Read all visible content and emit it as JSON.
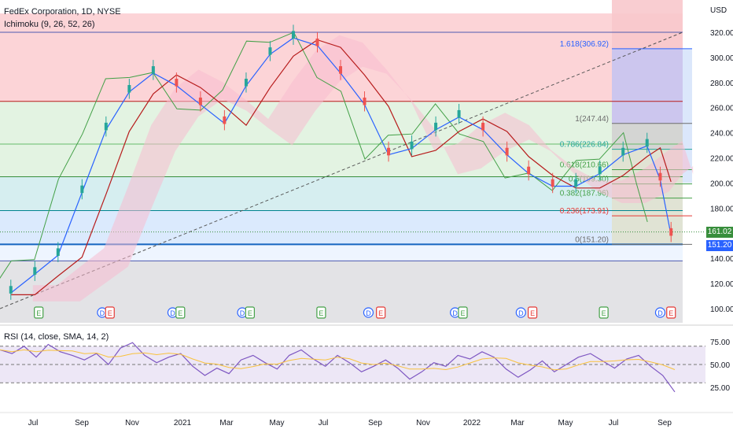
{
  "header": {
    "symbol_title": "FedEx Corporation, 1D, NYSE",
    "indicator_title": "Ichimoku (9, 26, 52, 26)",
    "currency": "USD"
  },
  "rsi_panel": {
    "title": "RSI (14, close, SMA, 14, 2)"
  },
  "price_tags": [
    {
      "value": "161.02",
      "color": "#388e3c"
    },
    {
      "value": "151.20",
      "color": "#2962ff"
    }
  ],
  "colors": {
    "band_red": "#fcd4d7",
    "band_green": "#e3f3e2",
    "band_teal": "#d6eef0",
    "band_blue": "#dbeafd",
    "band_gray": "#e3e3e6",
    "kijun_line": "#b71c1c",
    "tenkan_line": "#2962ff",
    "lagging_line": "#43a047",
    "cloud_bull": "#c8e6c9",
    "cloud_bear": "#f8bbd0",
    "rsi_line": "#7e57c2",
    "rsi_ma": "#f9c23c",
    "rsi_band": "#ede7f6"
  },
  "chart_data": [
    {
      "type": "line",
      "title": "FedEx Corporation, 1D, NYSE",
      "indicator": "Ichimoku (9, 26, 52, 26)",
      "y_axis_unit": "USD",
      "ylim": [
        95,
        335
      ],
      "y_ticks": [
        100,
        120,
        140,
        160,
        180,
        200,
        220,
        240,
        260,
        280,
        300,
        320
      ],
      "x_ticks": [
        "Jul",
        "Sep",
        "Nov",
        "2021",
        "Mar",
        "May",
        "Jul",
        "Sep",
        "Nov",
        "2022",
        "Mar",
        "May",
        "Jul",
        "Sep"
      ],
      "series": [
        {
          "name": "",
          "x": [
            "2020-05-15",
            "2020-06-15",
            "2020-07-15",
            "2020-08-15",
            "2020-09-15",
            "2020-10-15",
            "2020-11-15",
            "2020-12-15",
            "2021-01-15",
            "2021-02-15",
            "2021-03-15",
            "2021-04-15",
            "2021-05-15",
            "2021-06-15",
            "2021-07-15",
            "2021-08-15",
            "2021-09-15",
            "2021-10-15",
            "2021-11-15",
            "2021-12-15",
            "2022-01-15",
            "2022-02-15",
            "2022-03-15",
            "2022-04-15",
            "2022-05-15",
            "2022-06-15",
            "2022-07-15",
            "2022-08-15",
            "2022-09-01",
            "2022-09-15"
          ],
          "values": [
            115,
            130,
            145,
            195,
            245,
            275,
            290,
            280,
            265,
            250,
            280,
            305,
            318,
            312,
            290,
            265,
            225,
            230,
            245,
            255,
            245,
            225,
            210,
            200,
            200,
            210,
            225,
            232,
            205,
            161
          ]
        }
      ],
      "price_lines": [
        151.2,
        161.02
      ],
      "fibonacci_levels": [
        {
          "label": "1.618(306.92)",
          "value": 306.92
        },
        {
          "label": "1(247.44)",
          "value": 247.44
        },
        {
          "label": "0.786(226.84)",
          "value": 226.84
        },
        {
          "label": "0.618(210.66)",
          "value": 210.66
        },
        {
          "label": "0.5(199.30)",
          "value": 199.3
        },
        {
          "label": "0.382(187.96)",
          "value": 187.96
        },
        {
          "label": "0.236(173.91)",
          "value": 173.91
        },
        {
          "label": "0(151.20)",
          "value": 151.2
        }
      ],
      "horizontal_levels": [
        320,
        265,
        231,
        205,
        178,
        151.2,
        138
      ],
      "events": [
        {
          "date": "2020-06-20",
          "type": "E"
        },
        {
          "date": "2020-09-10",
          "type": "D"
        },
        {
          "date": "2020-09-20",
          "type": "E"
        },
        {
          "date": "2020-12-10",
          "type": "D"
        },
        {
          "date": "2020-12-20",
          "type": "E"
        },
        {
          "date": "2021-03-10",
          "type": "D"
        },
        {
          "date": "2021-03-20",
          "type": "E"
        },
        {
          "date": "2021-06-20",
          "type": "E"
        },
        {
          "date": "2021-08-20",
          "type": "D"
        },
        {
          "date": "2021-09-05",
          "type": "E"
        },
        {
          "date": "2021-12-10",
          "type": "D"
        },
        {
          "date": "2021-12-20",
          "type": "E"
        },
        {
          "date": "2022-03-05",
          "type": "D"
        },
        {
          "date": "2022-03-20",
          "type": "E"
        },
        {
          "date": "2022-06-20",
          "type": "E"
        },
        {
          "date": "2022-09-01",
          "type": "D"
        },
        {
          "date": "2022-09-15",
          "type": "E"
        }
      ]
    },
    {
      "type": "line",
      "title": "RSI (14, close, SMA, 14, 2)",
      "ylim": [
        13,
        87
      ],
      "y_ticks": [
        25.0,
        50.0,
        75.0
      ],
      "band": [
        30,
        70
      ],
      "midline": 50,
      "series": [
        {
          "name": "",
          "values": [
            66,
            62,
            70,
            58,
            72,
            64,
            60,
            55,
            62,
            50,
            68,
            74,
            60,
            52,
            58,
            62,
            48,
            38,
            46,
            40,
            55,
            60,
            52,
            45,
            60,
            66,
            56,
            48,
            60,
            52,
            42,
            48,
            55,
            46,
            34,
            42,
            52,
            48,
            60,
            56,
            64,
            58,
            45,
            36,
            44,
            54,
            42,
            50,
            58,
            62,
            54,
            46,
            56,
            60,
            48,
            38,
            20
          ]
        }
      ]
    }
  ]
}
